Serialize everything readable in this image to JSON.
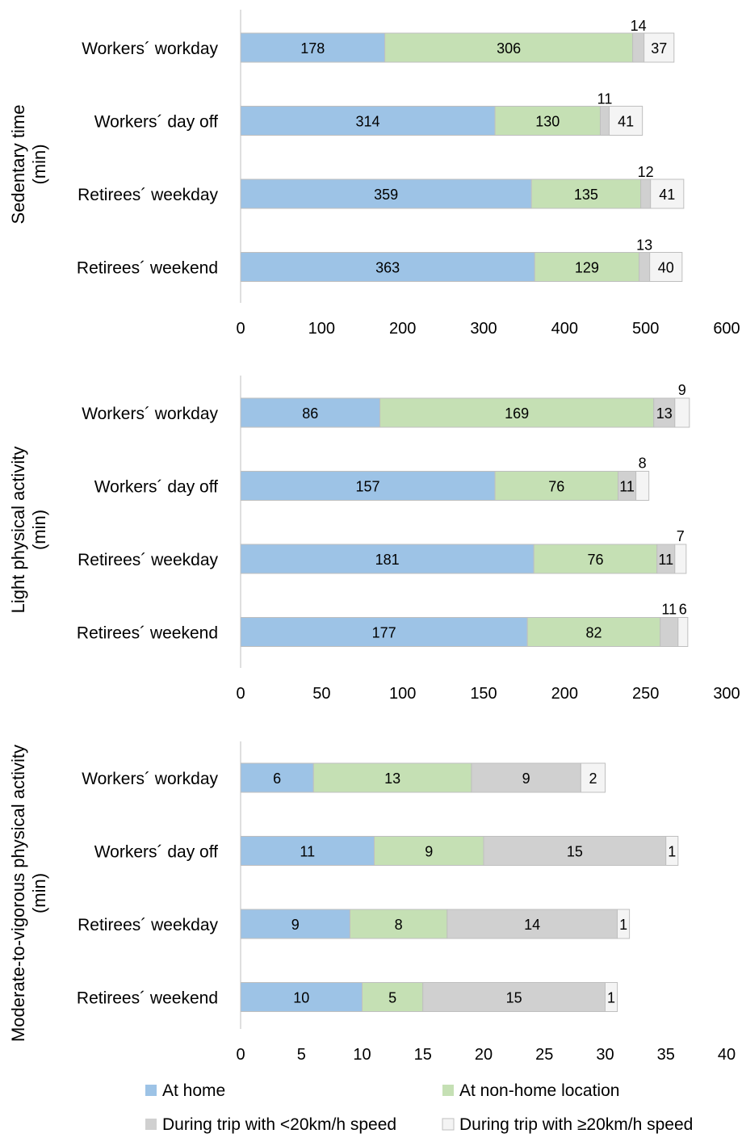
{
  "colors": {
    "at_home": "#9dc3e6",
    "at_non_home": "#c5e0b4",
    "trip_slow": "#d0d0d0",
    "trip_fast": "#f4f4f4",
    "axis": "#bfbfbf",
    "bar_border": "#bfbfbf"
  },
  "legend": {
    "position": "bottom",
    "items": [
      {
        "label": "At home",
        "color": "#9dc3e6"
      },
      {
        "label": "At non-home location",
        "color": "#c5e0b4"
      },
      {
        "label": "During trip with <20km/h speed",
        "color": "#d0d0d0"
      },
      {
        "label": "During trip with ≥20km/h speed",
        "color": "#f4f4f4"
      }
    ]
  },
  "chart_data": [
    {
      "type": "bar",
      "orientation": "horizontal",
      "stacked": true,
      "title": "",
      "ylabel": [
        "Sedentary time",
        "(min)"
      ],
      "xlim": [
        0,
        600
      ],
      "xticks": [
        0,
        100,
        200,
        300,
        400,
        500,
        600
      ],
      "grid": false,
      "categories": [
        "Workers´ workday",
        "Workers´ day off",
        "Retirees´ weekday",
        "Retirees´ weekend"
      ],
      "series": [
        {
          "name": "At home",
          "values": [
            178,
            314,
            359,
            363
          ]
        },
        {
          "name": "At non-home location",
          "values": [
            306,
            130,
            135,
            129
          ]
        },
        {
          "name": "During trip with <20km/h speed",
          "values": [
            14,
            11,
            12,
            13
          ]
        },
        {
          "name": "During trip with ≥20km/h speed",
          "values": [
            37,
            41,
            41,
            40
          ]
        }
      ],
      "label_above": [
        false,
        false,
        true,
        false
      ]
    },
    {
      "type": "bar",
      "orientation": "horizontal",
      "stacked": true,
      "title": "",
      "ylabel": [
        "Light physical activity",
        "(min)"
      ],
      "xlim": [
        0,
        300
      ],
      "xticks": [
        0,
        50,
        100,
        150,
        200,
        250,
        300
      ],
      "grid": false,
      "categories": [
        "Workers´ workday",
        "Workers´ day off",
        "Retirees´ weekday",
        "Retirees´ weekend"
      ],
      "series": [
        {
          "name": "At home",
          "values": [
            86,
            157,
            181,
            177
          ]
        },
        {
          "name": "At non-home location",
          "values": [
            169,
            76,
            76,
            82
          ]
        },
        {
          "name": "During trip with <20km/h speed",
          "values": [
            13,
            11,
            11,
            11
          ]
        },
        {
          "name": "During trip with ≥20km/h speed",
          "values": [
            9,
            8,
            7,
            6
          ]
        }
      ],
      "label_above": [
        false,
        false,
        false,
        true
      ]
    },
    {
      "type": "bar",
      "orientation": "horizontal",
      "stacked": true,
      "title": "",
      "ylabel": [
        "Moderate-to-vigorous physical activity",
        "(min)"
      ],
      "xlim": [
        0,
        40
      ],
      "xticks": [
        0,
        5,
        10,
        15,
        20,
        25,
        30,
        35,
        40
      ],
      "grid": false,
      "categories": [
        "Workers´ workday",
        "Workers´ day off",
        "Retirees´ weekday",
        "Retirees´ weekend"
      ],
      "series": [
        {
          "name": "At home",
          "values": [
            6,
            11,
            9,
            10
          ]
        },
        {
          "name": "At non-home location",
          "values": [
            13,
            9,
            8,
            5
          ]
        },
        {
          "name": "During trip with <20km/h speed",
          "values": [
            9,
            15,
            14,
            15
          ]
        },
        {
          "name": "During trip with ≥20km/h speed",
          "values": [
            2,
            1,
            1,
            1
          ]
        }
      ],
      "label_above": [
        false,
        false,
        false,
        false
      ]
    }
  ]
}
